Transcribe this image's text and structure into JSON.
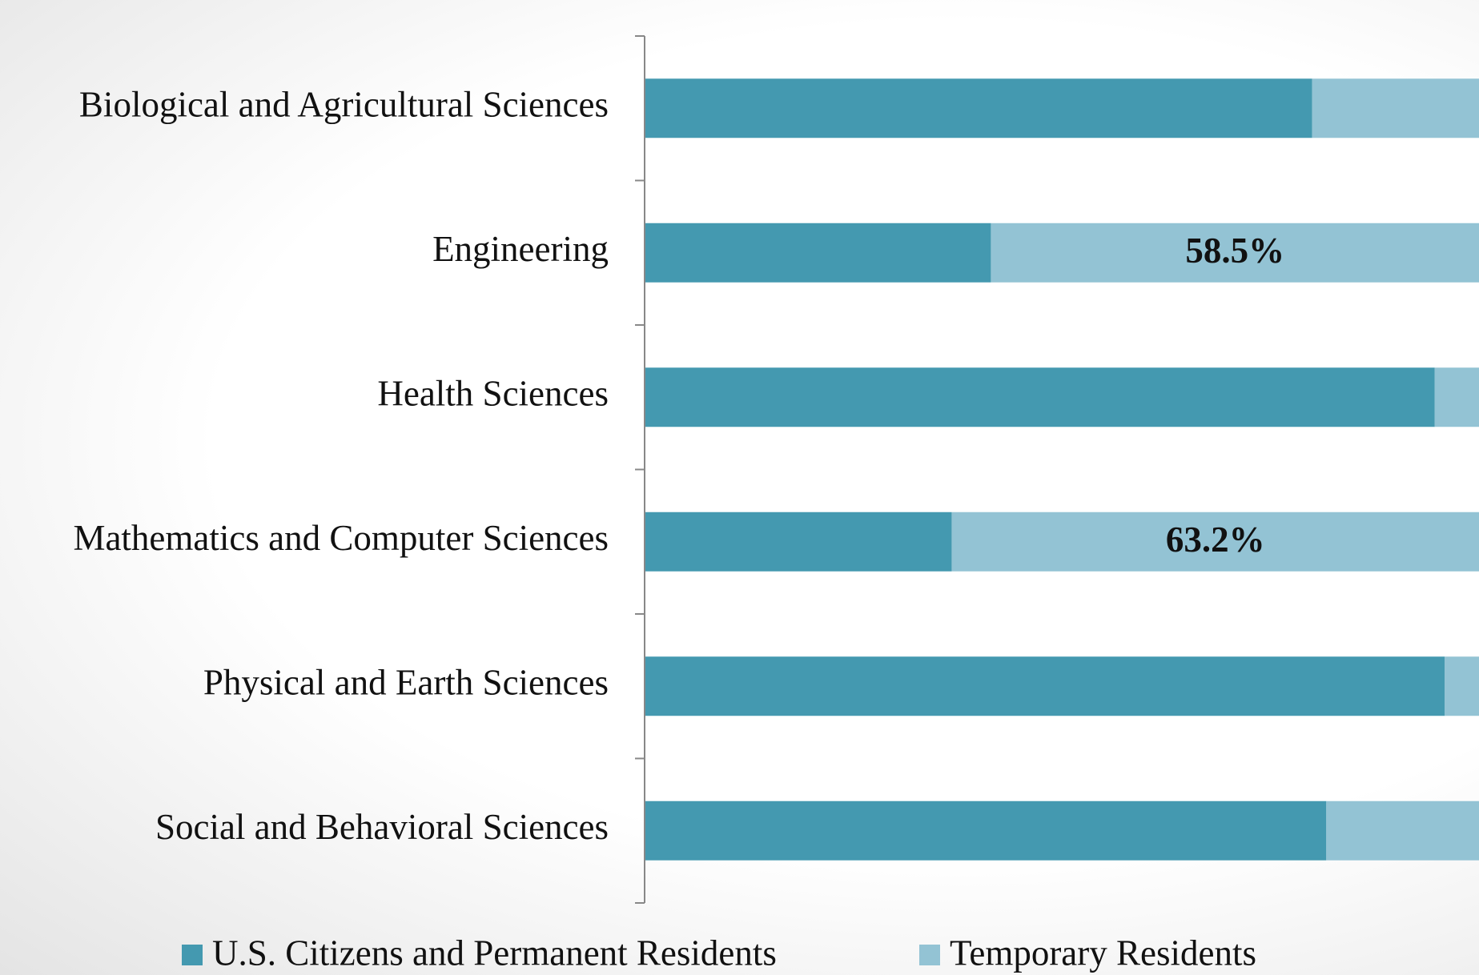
{
  "chart_data": {
    "type": "stacked-barh",
    "categories": [
      "Biological and Agricultural Sciences",
      "Engineering",
      "Health Sciences",
      "Mathematics and Computer Sciences",
      "Physical and Earth Sciences",
      "Social and Behavioral Sciences"
    ],
    "series": [
      {
        "name": "U.S. Citizens and Permanent Residents",
        "color": "#4499b0",
        "values": [
          80.0,
          41.5,
          94.7,
          36.8,
          95.9,
          81.7
        ]
      },
      {
        "name": "Temporary Residents",
        "color": "#93c3d4",
        "values": [
          20.0,
          58.5,
          5.3,
          63.2,
          4.1,
          18.3
        ],
        "value_labels": [
          null,
          "58.5%",
          null,
          "63.2%",
          null,
          null
        ]
      }
    ],
    "xlim": [
      0,
      100
    ],
    "legend": "bottom"
  }
}
